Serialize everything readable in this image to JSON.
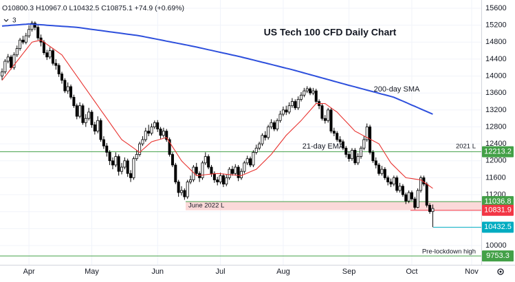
{
  "chart_data": {
    "type": "candlestick",
    "title": "US Tech 100 CFD Daily Chart",
    "ohlc_text": "O10800.3 H10967.0 L10432.5 C10875.1 +74.9 (+0.69%)",
    "indicator_count": "3",
    "categories": [
      null,
      null,
      null,
      null,
      null,
      null,
      null,
      null,
      null,
      "Apr",
      null,
      null,
      null,
      null,
      null,
      null,
      null,
      null,
      null,
      null,
      null,
      null,
      null,
      null,
      null,
      null,
      null,
      null,
      null,
      null,
      "May",
      null,
      null,
      null,
      null,
      null,
      null,
      null,
      null,
      null,
      null,
      null,
      null,
      null,
      null,
      null,
      null,
      null,
      null,
      null,
      null,
      null,
      "Jun",
      null,
      null,
      null,
      null,
      null,
      null,
      null,
      null,
      null,
      null,
      null,
      null,
      null,
      null,
      null,
      null,
      null,
      null,
      null,
      null,
      "Jul",
      null,
      null,
      null,
      null,
      null,
      null,
      null,
      null,
      null,
      null,
      null,
      null,
      null,
      null,
      null,
      null,
      null,
      null,
      null,
      null,
      "Aug",
      null,
      null,
      null,
      null,
      null,
      null,
      null,
      null,
      null,
      null,
      null,
      null,
      null,
      null,
      null,
      null,
      null,
      null,
      null,
      null,
      null,
      "Sep",
      null,
      null,
      null,
      null,
      null,
      null,
      null,
      null,
      null,
      null,
      null,
      null,
      null,
      null,
      null,
      null,
      null,
      null,
      null,
      null,
      "Oct",
      null,
      null,
      null,
      null,
      null,
      null,
      null,
      null,
      null,
      null,
      null,
      null,
      null,
      null,
      null,
      null,
      null,
      null,
      null,
      "Nov",
      null,
      null,
      null,
      null
    ],
    "open": [
      14000,
      14100,
      14350,
      14450,
      14200,
      14500,
      14650,
      14850,
      14800,
      14950,
      15100,
      15250,
      15150,
      14900,
      14800,
      14550,
      14450,
      14600,
      14300,
      14250,
      14050,
      13900,
      13650,
      13750,
      13500,
      13300,
      13050,
      13300,
      12900,
      13000,
      13150,
      12850,
      12700,
      12950,
      12500,
      12350,
      12200,
      12000,
      11900,
      12100,
      11750,
      11850,
      12000,
      11700,
      11600,
      12050,
      12150,
      12400,
      12500,
      12700,
      12650,
      12800,
      12900,
      12750,
      12600,
      12700,
      12500,
      12150,
      11900,
      11500,
      11250,
      11300,
      11150,
      11500,
      11550,
      11850,
      11700,
      11600,
      11950,
      12100,
      11850,
      11700,
      11550,
      11500,
      11650,
      11450,
      11600,
      11800,
      11700,
      11850,
      11600,
      11750,
      11950,
      12050,
      11900,
      12200,
      12300,
      12400,
      12600,
      12550,
      12800,
      12900,
      12750,
      12950,
      13100,
      13200,
      13150,
      13300,
      13400,
      13250,
      13450,
      13550,
      13650,
      13700,
      13600,
      13650,
      13400,
      13300,
      13000,
      12950,
      13200,
      12700,
      12650,
      12500,
      12450,
      12300,
      12150,
      12050,
      12250,
      11950,
      12100,
      12300,
      12500,
      12800,
      12200,
      12000,
      11900,
      11700,
      11800,
      11600,
      11500,
      11450,
      11600,
      11300,
      11400,
      11200,
      11050,
      11250,
      11100,
      10900,
      11300,
      11600,
      11450,
      10950,
      10800.3,
      null,
      null,
      null,
      null,
      null,
      null,
      null,
      null,
      null,
      null,
      null,
      null,
      null,
      null,
      null,
      null,
      null
    ],
    "high": [
      14180,
      14400,
      14520,
      14500,
      14560,
      14720,
      14900,
      14950,
      15020,
      15200,
      15300,
      15290,
      15200,
      14980,
      14850,
      14620,
      14680,
      14650,
      14400,
      14300,
      14100,
      13950,
      13850,
      13800,
      13560,
      13350,
      13380,
      13350,
      13100,
      13250,
      13200,
      12920,
      13050,
      13000,
      12580,
      12420,
      12250,
      12080,
      12200,
      12150,
      11950,
      12080,
      12050,
      11780,
      12100,
      12250,
      12450,
      12580,
      12780,
      12850,
      12880,
      12950,
      12960,
      12800,
      12780,
      12750,
      12550,
      12200,
      11950,
      11550,
      11400,
      11350,
      11550,
      11650,
      11900,
      11950,
      11750,
      12000,
      12200,
      12150,
      11900,
      11750,
      11620,
      11720,
      11700,
      11680,
      11850,
      11880,
      11920,
      11900,
      11820,
      12000,
      12120,
      12100,
      12250,
      12380,
      12450,
      12650,
      12700,
      12850,
      12980,
      12950,
      13000,
      13180,
      13280,
      13300,
      13380,
      13480,
      13450,
      13520,
      13620,
      13720,
      13760,
      13740,
      13720,
      13700,
      13450,
      13350,
      13080,
      13250,
      13250,
      12780,
      12700,
      12580,
      12500,
      12350,
      12220,
      12300,
      12300,
      12180,
      12350,
      12580,
      12880,
      12850,
      12250,
      12080,
      11950,
      11880,
      11850,
      11650,
      11580,
      11650,
      11650,
      11480,
      11450,
      11250,
      11300,
      11300,
      11150,
      11350,
      11650,
      11650,
      11500,
      11000,
      10967,
      null,
      null,
      null,
      null,
      null,
      null,
      null,
      null,
      null,
      null,
      null,
      null,
      null,
      null,
      null,
      null,
      null
    ],
    "low": [
      13900,
      14050,
      14300,
      14150,
      14150,
      14450,
      14600,
      14750,
      14750,
      14900,
      15050,
      15080,
      14850,
      14700,
      14500,
      14380,
      14400,
      14250,
      14150,
      13980,
      13820,
      13600,
      13580,
      13450,
      13250,
      12980,
      13000,
      12850,
      12800,
      12950,
      12780,
      12620,
      12650,
      12450,
      12280,
      12100,
      11900,
      11800,
      11850,
      11650,
      11680,
      11800,
      11620,
      11500,
      11550,
      12000,
      12100,
      12350,
      12450,
      12580,
      12600,
      12750,
      12680,
      12520,
      12550,
      12450,
      12100,
      11850,
      11450,
      11150,
      11180,
      11080,
      11100,
      11450,
      11500,
      11650,
      11500,
      11550,
      11900,
      11800,
      11620,
      11480,
      11420,
      11450,
      11380,
      11400,
      11550,
      11650,
      11650,
      11520,
      11550,
      11700,
      11900,
      11850,
      11850,
      12150,
      12250,
      12350,
      12480,
      12500,
      12750,
      12700,
      12700,
      12900,
      13050,
      13080,
      13100,
      13250,
      13200,
      13200,
      13400,
      13500,
      13600,
      13550,
      13550,
      13350,
      13220,
      12950,
      12880,
      12900,
      12650,
      12580,
      12450,
      12380,
      12250,
      12080,
      11980,
      12000,
      11900,
      11900,
      12050,
      12250,
      12450,
      12150,
      11950,
      11820,
      11650,
      11650,
      11550,
      11420,
      11380,
      11400,
      11250,
      11250,
      11150,
      10980,
      11000,
      11050,
      10850,
      10880,
      11250,
      11400,
      10900,
      10750,
      10432.5,
      null,
      null,
      null,
      null,
      null,
      null,
      null,
      null,
      null,
      null,
      null,
      null,
      null,
      null,
      null,
      null,
      null
    ],
    "close": [
      14100,
      14350,
      14450,
      14200,
      14500,
      14650,
      14850,
      14800,
      14950,
      15100,
      15250,
      15150,
      14900,
      14800,
      14550,
      14450,
      14600,
      14300,
      14250,
      14050,
      13900,
      13650,
      13750,
      13500,
      13300,
      13050,
      13300,
      12900,
      13000,
      13150,
      12850,
      12700,
      12950,
      12500,
      12350,
      12200,
      12000,
      11900,
      12100,
      11750,
      11850,
      12000,
      11700,
      11600,
      12050,
      12150,
      12400,
      12500,
      12700,
      12650,
      12800,
      12900,
      12750,
      12600,
      12700,
      12500,
      12150,
      11900,
      11500,
      11250,
      11300,
      11150,
      11500,
      11550,
      11850,
      11700,
      11600,
      11950,
      12100,
      11850,
      11700,
      11550,
      11500,
      11650,
      11450,
      11600,
      11800,
      11700,
      11850,
      11600,
      11750,
      11950,
      12050,
      11900,
      12200,
      12300,
      12400,
      12600,
      12550,
      12800,
      12900,
      12750,
      12950,
      13100,
      13200,
      13150,
      13300,
      13400,
      13250,
      13450,
      13550,
      13650,
      13700,
      13600,
      13650,
      13400,
      13300,
      13000,
      12950,
      13200,
      12700,
      12650,
      12500,
      12450,
      12300,
      12150,
      12050,
      12250,
      11950,
      12100,
      12300,
      12500,
      12800,
      12200,
      12000,
      11900,
      11700,
      11800,
      11600,
      11500,
      11450,
      11600,
      11300,
      11400,
      11200,
      11050,
      11250,
      11100,
      10900,
      11300,
      11600,
      11450,
      10950,
      10800.3,
      10875.1,
      null,
      null,
      null,
      null,
      null,
      null,
      null,
      null,
      null,
      null,
      null,
      null,
      null,
      null,
      null,
      null,
      null
    ],
    "up_color": "#ffffff",
    "down_color": "#000000",
    "series": [
      {
        "name": "200-day SMA",
        "color": "#2d4fdc",
        "values": [
          15180,
          15186,
          15191,
          15197,
          15202,
          15208,
          15213,
          15219,
          15224,
          15230,
          15225,
          15220,
          15215,
          15210,
          15205,
          15200,
          15195,
          15190,
          15185,
          15180,
          15175,
          15170,
          15165,
          15160,
          15155,
          15150,
          15140,
          15131,
          15121,
          15112,
          15102,
          15093,
          15083,
          15074,
          15064,
          15055,
          15045,
          15036,
          15026,
          15017,
          15007,
          14998,
          14988,
          14979,
          14969,
          14960,
          14950,
          14936,
          14922,
          14908,
          14894,
          14881,
          14867,
          14853,
          14839,
          14825,
          14811,
          14797,
          14783,
          14769,
          14756,
          14742,
          14728,
          14714,
          14700,
          14684,
          14669,
          14653,
          14638,
          14622,
          14606,
          14591,
          14575,
          14559,
          14544,
          14528,
          14513,
          14497,
          14481,
          14466,
          14450,
          14432,
          14415,
          14397,
          14379,
          14362,
          14344,
          14326,
          14309,
          14291,
          14274,
          14256,
          14238,
          14221,
          14203,
          14185,
          14168,
          14150,
          14131,
          14111,
          14092,
          14072,
          14053,
          14033,
          14014,
          13994,
          13975,
          13956,
          13936,
          13917,
          13897,
          13878,
          13858,
          13839,
          13819,
          13800,
          13781,
          13763,
          13744,
          13725,
          13706,
          13688,
          13669,
          13650,
          13631,
          13613,
          13594,
          13575,
          13556,
          13538,
          13519,
          13500,
          13469,
          13438,
          13408,
          13377,
          13346,
          13315,
          13285,
          13254,
          13223,
          13192,
          13162,
          13131,
          13100,
          null,
          null,
          null,
          null,
          null,
          null,
          null,
          null,
          null,
          null,
          null,
          null,
          null,
          null,
          null,
          null,
          null
        ]
      },
      {
        "name": "21-day EMA",
        "color": "#e8322f",
        "values": [
          13900,
          13990,
          14080,
          14170,
          14260,
          14350,
          14440,
          14530,
          14620,
          14710,
          14800,
          14817,
          14833,
          14850,
          14800,
          14750,
          14700,
          14650,
          14600,
          14550,
          14500,
          14400,
          14300,
          14200,
          14100,
          14000,
          13900,
          13800,
          13700,
          13600,
          13500,
          13400,
          13300,
          13200,
          13100,
          13000,
          12900,
          12800,
          12700,
          12600,
          12500,
          12450,
          12400,
          12350,
          12300,
          12250,
          12200,
          12263,
          12325,
          12388,
          12450,
          12470,
          12490,
          12510,
          12530,
          12550,
          12440,
          12330,
          12220,
          12110,
          12000,
          11930,
          11860,
          11790,
          11720,
          11650,
          11657,
          11664,
          11671,
          11679,
          11686,
          11693,
          11700,
          11694,
          11688,
          11681,
          11675,
          11669,
          11663,
          11656,
          11650,
          11680,
          11710,
          11740,
          11770,
          11800,
          11870,
          11940,
          12010,
          12080,
          12150,
          12240,
          12330,
          12420,
          12510,
          12600,
          12670,
          12740,
          12810,
          12880,
          12950,
          13030,
          13110,
          13190,
          13270,
          13350,
          13350,
          13350,
          13350,
          13300,
          13250,
          13200,
          13150,
          13075,
          13000,
          12925,
          12850,
          12775,
          12700,
          12663,
          12625,
          12588,
          12550,
          12513,
          12475,
          12438,
          12400,
          12288,
          12175,
          12063,
          11950,
          11880,
          11810,
          11740,
          11670,
          11600,
          11590,
          11580,
          11570,
          11560,
          11550,
          11500,
          11450,
          11400,
          11350,
          null,
          null,
          null,
          null,
          null,
          null,
          null,
          null,
          null,
          null,
          null,
          null,
          null,
          null,
          null,
          null,
          null
        ]
      }
    ],
    "levels": [
      {
        "value": 12213.2,
        "color": "#43a047",
        "label": "2021 L"
      },
      {
        "value": 11036.8,
        "color": "#43a047",
        "label": "June 2022 L"
      },
      {
        "value": 10831.9,
        "color": "#f23645"
      },
      {
        "value": 10432.5,
        "color": "#00acc1"
      },
      {
        "value": 9753.3,
        "color": "#43a047",
        "label": "Pre-lockdown high"
      }
    ],
    "band_color": "#fbd9d9",
    "ylim": [
      9545,
      15795
    ],
    "yticks": [
      15600,
      15200,
      14800,
      14400,
      14000,
      13600,
      13200,
      12800,
      12400,
      12000,
      11600,
      11200,
      10800,
      10400,
      10000
    ]
  }
}
